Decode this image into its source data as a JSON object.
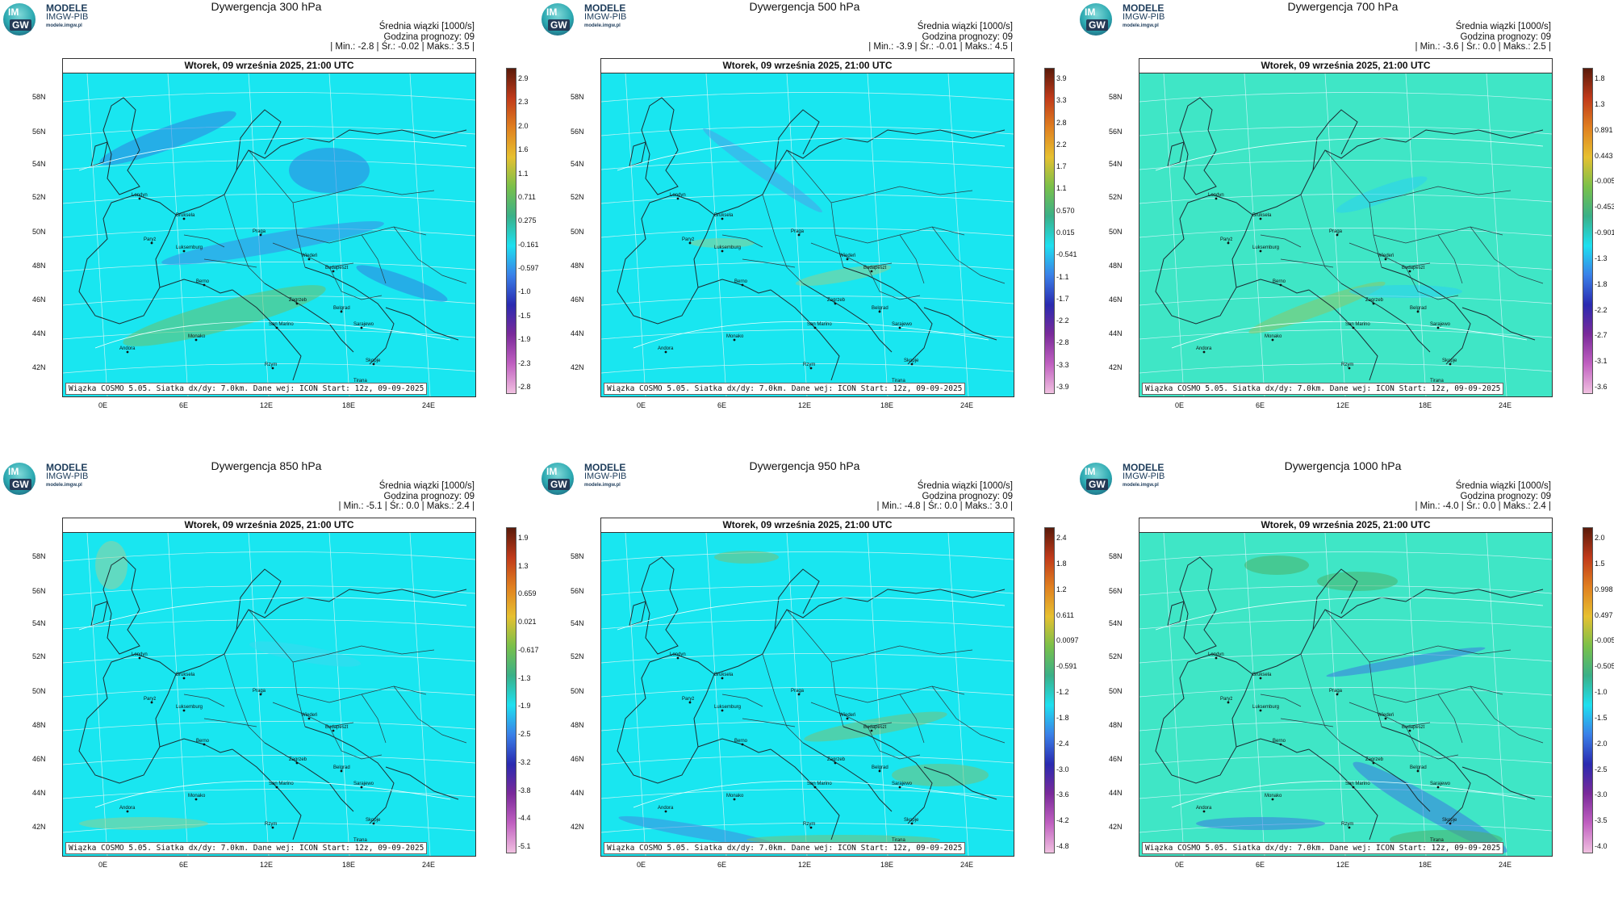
{
  "logo": {
    "badge_top": "IM",
    "badge_bottom": "GW",
    "line1": "MODELE",
    "line2": "IMGW-PIB",
    "line3": "modele.imgw.pl"
  },
  "common": {
    "date": "Wtorek, 09 września 2025, 21:00 UTC",
    "mean_label": "Średnia wiązki [1000/s]",
    "forecast_hour": "Godzina prognozy: 09",
    "footer": "Wiązka COSMO 5.05. Siatka dx/dy: 7.0km. Dane wej: ICON Start: 12z, 09-09-2025",
    "lat_labels": [
      "58N",
      "56N",
      "54N",
      "52N",
      "50N",
      "48N",
      "46N",
      "44N",
      "42N"
    ],
    "lon_labels": [
      "0E",
      "6E",
      "12E",
      "18E",
      "24E"
    ],
    "cities": [
      "Londyn",
      "Bruksela",
      "Paryż",
      "Luksemburg",
      "Berno",
      "Praga",
      "Wiedeń",
      "Budapeszt",
      "Zagrzeb",
      "Belgrad",
      "Sarajewo",
      "San Marino",
      "Monako",
      "Andora",
      "Skopje",
      "Tirana",
      "Rzym"
    ]
  },
  "panels": [
    {
      "title": "Dywergencja 300 hPa",
      "stats": "| Min.: -2.8 | Śr.: -0.02 | Maks.: 3.5 |",
      "ticks": [
        "2.9",
        "2.3",
        "2.0",
        "1.6",
        "1.1",
        "0.711",
        "0.275",
        "-0.161",
        "-0.597",
        "-1.0",
        "-1.5",
        "-1.9",
        "-2.3",
        "-2.8"
      ]
    },
    {
      "title": "Dywergencja 500 hPa",
      "stats": "| Min.: -3.9 | Śr.: -0.01 | Maks.: 4.5 |",
      "ticks": [
        "3.9",
        "3.3",
        "2.8",
        "2.2",
        "1.7",
        "1.1",
        "0.570",
        "0.015",
        "-0.541",
        "-1.1",
        "-1.7",
        "-2.2",
        "-2.8",
        "-3.3",
        "-3.9"
      ]
    },
    {
      "title": "Dywergencja 700 hPa",
      "stats": "| Min.: -3.6 | Śr.: 0.0 | Maks.: 2.5 |",
      "ticks": [
        "1.8",
        "1.3",
        "0.891",
        "0.443",
        "-0.005",
        "-0.453",
        "-0.901",
        "-1.3",
        "-1.8",
        "-2.2",
        "-2.7",
        "-3.1",
        "-3.6"
      ]
    },
    {
      "title": "Dywergencja 850 hPa",
      "stats": "| Min.: -5.1 | Śr.: 0.0 | Maks.: 2.4 |",
      "ticks": [
        "1.9",
        "1.3",
        "0.659",
        "0.021",
        "-0.617",
        "-1.3",
        "-1.9",
        "-2.5",
        "-3.2",
        "-3.8",
        "-4.4",
        "-5.1"
      ]
    },
    {
      "title": "Dywergencja 950 hPa",
      "stats": "| Min.: -4.8 | Śr.: 0.0 | Maks.: 3.0 |",
      "ticks": [
        "2.4",
        "1.8",
        "1.2",
        "0.611",
        "0.0097",
        "-0.591",
        "-1.2",
        "-1.8",
        "-2.4",
        "-3.0",
        "-3.6",
        "-4.2",
        "-4.8"
      ]
    },
    {
      "title": "Dywergencja 1000 hPa",
      "stats": "| Min.: -4.0 | Śr.: 0.0 | Maks.: 2.4 |",
      "ticks": [
        "2.0",
        "1.5",
        "0.998",
        "0.497",
        "-0.005",
        "-0.505",
        "-1.0",
        "-1.5",
        "-2.0",
        "-2.5",
        "-3.0",
        "-3.5",
        "-4.0"
      ]
    }
  ],
  "colors": {
    "field_main": "#19e6f0",
    "field_alt": "#3ee6c8",
    "border": "#333333"
  }
}
